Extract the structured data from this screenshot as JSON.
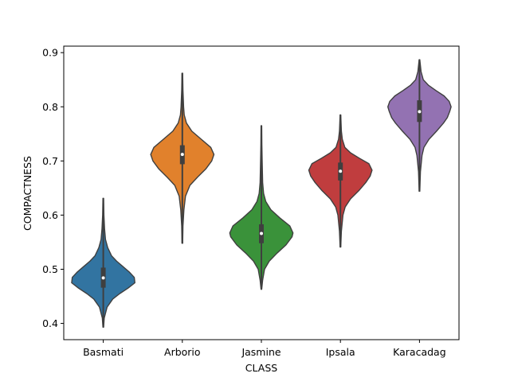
{
  "chart_data": {
    "type": "violin",
    "xlabel": "CLASS",
    "ylabel": "COMPACTNESS",
    "ylim": [
      0.37,
      0.912
    ],
    "yticks": [
      0.4,
      0.5,
      0.6,
      0.7,
      0.8,
      0.9
    ],
    "ytick_labels": [
      "0.4",
      "0.5",
      "0.6",
      "0.7",
      "0.8",
      "0.9"
    ],
    "grid": false,
    "categories": [
      "Basmati",
      "Arborio",
      "Jasmine",
      "Ipsala",
      "Karacadag"
    ],
    "violins": [
      {
        "category": "Basmati",
        "color": "#3274a1",
        "min": 0.393,
        "q1": 0.466,
        "median": 0.484,
        "q3": 0.503,
        "max": 0.631,
        "density": [
          [
            0.393,
            0.01
          ],
          [
            0.41,
            0.03
          ],
          [
            0.43,
            0.12
          ],
          [
            0.445,
            0.3
          ],
          [
            0.455,
            0.52
          ],
          [
            0.465,
            0.78
          ],
          [
            0.475,
            1.0
          ],
          [
            0.485,
            0.98
          ],
          [
            0.495,
            0.82
          ],
          [
            0.505,
            0.62
          ],
          [
            0.515,
            0.42
          ],
          [
            0.525,
            0.26
          ],
          [
            0.54,
            0.14
          ],
          [
            0.555,
            0.07
          ],
          [
            0.575,
            0.04
          ],
          [
            0.6,
            0.02
          ],
          [
            0.631,
            0.01
          ]
        ]
      },
      {
        "category": "Arborio",
        "color": "#e1812c",
        "min": 0.548,
        "q1": 0.694,
        "median": 0.712,
        "q3": 0.729,
        "max": 0.862,
        "density": [
          [
            0.548,
            0.01
          ],
          [
            0.58,
            0.02
          ],
          [
            0.61,
            0.05
          ],
          [
            0.635,
            0.1
          ],
          [
            0.655,
            0.24
          ],
          [
            0.67,
            0.48
          ],
          [
            0.685,
            0.74
          ],
          [
            0.7,
            0.93
          ],
          [
            0.712,
            1.0
          ],
          [
            0.725,
            0.9
          ],
          [
            0.74,
            0.6
          ],
          [
            0.755,
            0.3
          ],
          [
            0.77,
            0.13
          ],
          [
            0.785,
            0.06
          ],
          [
            0.8,
            0.04
          ],
          [
            0.83,
            0.02
          ],
          [
            0.862,
            0.01
          ]
        ]
      },
      {
        "category": "Jasmine",
        "color": "#3a923a",
        "min": 0.463,
        "q1": 0.548,
        "median": 0.566,
        "q3": 0.583,
        "max": 0.765,
        "density": [
          [
            0.463,
            0.01
          ],
          [
            0.48,
            0.04
          ],
          [
            0.5,
            0.1
          ],
          [
            0.515,
            0.25
          ],
          [
            0.53,
            0.5
          ],
          [
            0.545,
            0.78
          ],
          [
            0.56,
            0.97
          ],
          [
            0.567,
            1.0
          ],
          [
            0.58,
            0.9
          ],
          [
            0.595,
            0.58
          ],
          [
            0.61,
            0.3
          ],
          [
            0.625,
            0.14
          ],
          [
            0.64,
            0.07
          ],
          [
            0.66,
            0.04
          ],
          [
            0.7,
            0.025
          ],
          [
            0.73,
            0.015
          ],
          [
            0.765,
            0.01
          ]
        ]
      },
      {
        "category": "Ipsala",
        "color": "#c03d3e",
        "min": 0.541,
        "q1": 0.664,
        "median": 0.681,
        "q3": 0.697,
        "max": 0.785,
        "density": [
          [
            0.541,
            0.01
          ],
          [
            0.57,
            0.03
          ],
          [
            0.6,
            0.08
          ],
          [
            0.615,
            0.15
          ],
          [
            0.63,
            0.32
          ],
          [
            0.645,
            0.58
          ],
          [
            0.66,
            0.8
          ],
          [
            0.672,
            0.94
          ],
          [
            0.683,
            1.0
          ],
          [
            0.695,
            0.9
          ],
          [
            0.705,
            0.6
          ],
          [
            0.715,
            0.32
          ],
          [
            0.725,
            0.14
          ],
          [
            0.74,
            0.06
          ],
          [
            0.755,
            0.03
          ],
          [
            0.77,
            0.02
          ],
          [
            0.785,
            0.01
          ]
        ]
      },
      {
        "category": "Karacadag",
        "color": "#9372b2",
        "min": 0.644,
        "q1": 0.772,
        "median": 0.791,
        "q3": 0.812,
        "max": 0.887,
        "density": [
          [
            0.644,
            0.01
          ],
          [
            0.68,
            0.03
          ],
          [
            0.71,
            0.08
          ],
          [
            0.725,
            0.14
          ],
          [
            0.74,
            0.3
          ],
          [
            0.755,
            0.54
          ],
          [
            0.77,
            0.76
          ],
          [
            0.78,
            0.88
          ],
          [
            0.792,
            0.96
          ],
          [
            0.8,
            1.0
          ],
          [
            0.81,
            0.94
          ],
          [
            0.82,
            0.78
          ],
          [
            0.83,
            0.52
          ],
          [
            0.84,
            0.28
          ],
          [
            0.85,
            0.12
          ],
          [
            0.865,
            0.05
          ],
          [
            0.887,
            0.01
          ]
        ]
      }
    ]
  }
}
